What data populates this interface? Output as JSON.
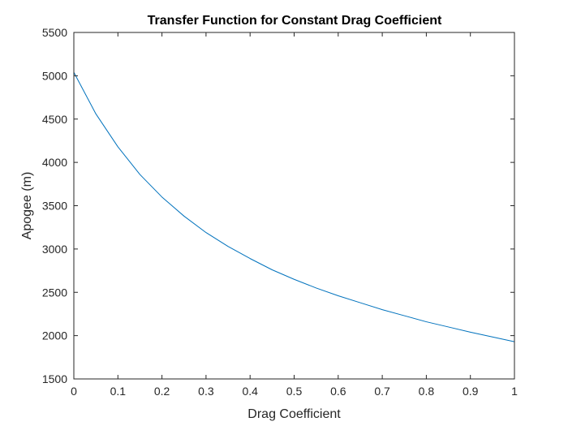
{
  "chart_data": {
    "type": "line",
    "title": "Transfer Function for Constant Drag Coefficient",
    "xlabel": "Drag Coefficient",
    "ylabel": "Apogee (m)",
    "xlim": [
      0,
      1
    ],
    "ylim": [
      1500,
      5500
    ],
    "xticks": [
      0,
      0.1,
      0.2,
      0.3,
      0.4,
      0.5,
      0.6,
      0.7,
      0.8,
      0.9,
      1
    ],
    "xtick_labels": [
      "0",
      "0.1",
      "0.2",
      "0.3",
      "0.4",
      "0.5",
      "0.6",
      "0.7",
      "0.8",
      "0.9",
      "1"
    ],
    "yticks": [
      1500,
      2000,
      2500,
      3000,
      3500,
      4000,
      4500,
      5000,
      5500
    ],
    "ytick_labels": [
      "1500",
      "2000",
      "2500",
      "3000",
      "3500",
      "4000",
      "4500",
      "5000",
      "5500"
    ],
    "grid": false,
    "series": [
      {
        "color": "#0072BD",
        "x": [
          0,
          0.05,
          0.1,
          0.15,
          0.2,
          0.25,
          0.3,
          0.35,
          0.4,
          0.45,
          0.5,
          0.55,
          0.6,
          0.65,
          0.7,
          0.75,
          0.8,
          0.85,
          0.9,
          0.95,
          1.0
        ],
        "y": [
          5040,
          4560,
          4180,
          3860,
          3600,
          3380,
          3190,
          3030,
          2890,
          2760,
          2650,
          2550,
          2460,
          2380,
          2300,
          2230,
          2160,
          2100,
          2040,
          1985,
          1930
        ]
      }
    ]
  }
}
